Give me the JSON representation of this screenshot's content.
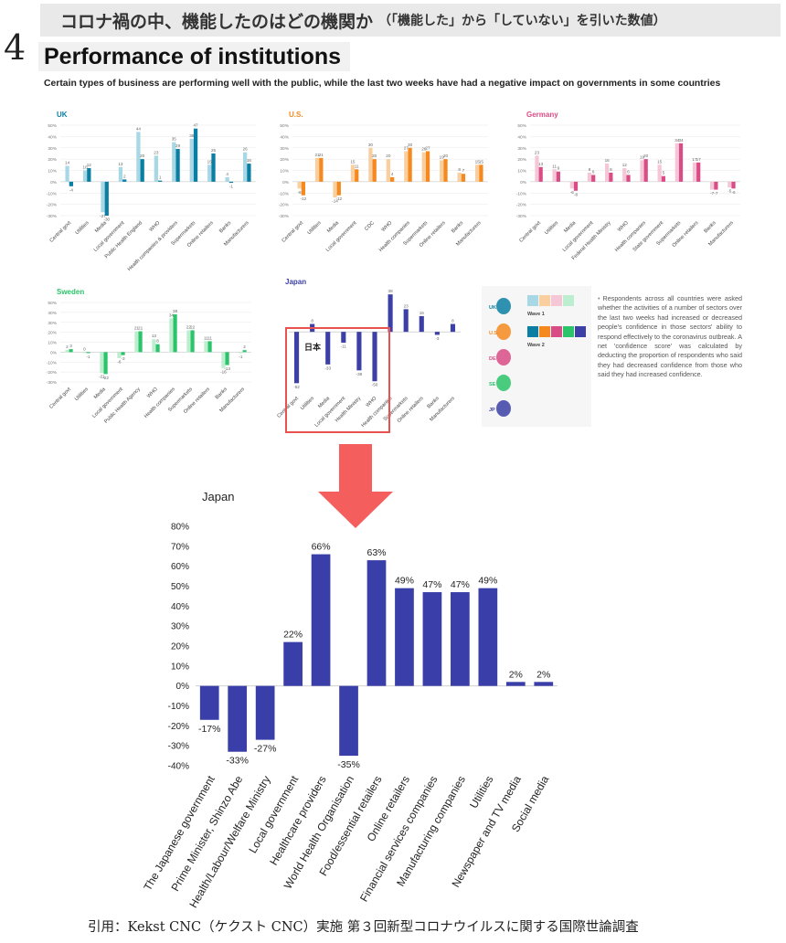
{
  "header": {
    "banner_main": "コロナ禍の中、機能したのはどの機関か",
    "banner_sub": "（「機能した」から「していない」を引いた数値）",
    "section_number": "4",
    "title": "Performance of institutions",
    "subtitle": "Certain types of business are performing well with the public, while the last two weeks have had a negative impact on governments in some countries"
  },
  "small_axis_ticks": [
    "50%",
    "40%",
    "30%",
    "20%",
    "10%",
    "0%",
    "-10%",
    "-20%",
    "-30%"
  ],
  "legend": {
    "countries": [
      "UK",
      "U.S.",
      "DE",
      "SE",
      "JP"
    ],
    "wave1_label": "Wave 1",
    "wave2_label": "Wave 2",
    "wave1_colors": [
      "#a8d8e6",
      "#f9cf9f",
      "#f5c6d6",
      "#bdeed0"
    ],
    "wave2_colors": [
      "#0b7fa3",
      "#f5891f",
      "#d94c86",
      "#2cc46a",
      "#3b3fa6"
    ]
  },
  "note": "Respondents across all countries were asked whether the activities of a number of sectors over the last two weeks had increased or decreased people's confidence in those sectors' ability to respond effectively to the coronavirus outbreak. A net 'confidence score' was calculated by deducting the proportion of respondents who said they had decreased confidence from those who said they had increased confidence.",
  "nihon_label": "日本",
  "citation": "引用：Kekst CNC（ケクスト CNC）実施 第３回新型コロナウイルスに関する国際世論調査",
  "chart_data": [
    {
      "type": "bar",
      "title": "UK",
      "color_w1": "#a8d8e6",
      "color_w2": "#0b7fa3",
      "categories": [
        "Central govt",
        "Utilities",
        "Media",
        "Local government",
        "Public Health England",
        "WHO",
        "Health companies & providers",
        "Supermarkets",
        "Online retailers",
        "Banks",
        "Manufacturers"
      ],
      "series": [
        {
          "name": "Wave 1",
          "values": [
            14,
            10,
            -27,
            13,
            44,
            23,
            35,
            38,
            15,
            4,
            26
          ]
        },
        {
          "name": "Wave 2",
          "values": [
            -4,
            12,
            -30,
            2,
            20,
            1,
            29,
            47,
            25,
            -1,
            16
          ]
        }
      ],
      "ylim": [
        -30,
        50
      ]
    },
    {
      "type": "bar",
      "title": "U.S.",
      "color_w1": "#f9cf9f",
      "color_w2": "#f5891f",
      "categories": [
        "Central govt",
        "Utilities",
        "Media",
        "Local government",
        "CDC",
        "WHO",
        "Health companies",
        "Supermarkets",
        "Online retailers",
        "Banks",
        "Manufacturers"
      ],
      "series": [
        {
          "name": "Wave 1",
          "values": [
            -6,
            21,
            -14,
            15,
            30,
            20,
            27,
            26,
            19,
            8,
            15
          ]
        },
        {
          "name": "Wave 2",
          "values": [
            -12,
            21,
            -12,
            11,
            20,
            4,
            30,
            27,
            20,
            7,
            15
          ]
        }
      ],
      "ylim": [
        -30,
        50
      ]
    },
    {
      "type": "bar",
      "title": "Germany",
      "color_w1": "#f5c6d6",
      "color_w2": "#d94c86",
      "categories": [
        "Central govt",
        "Utilities",
        "Media",
        "Local government",
        "Federal Health Ministry",
        "WHO",
        "Health companies",
        "State government",
        "Supermarkets",
        "Online retailers",
        "Banks",
        "Manufacturers"
      ],
      "series": [
        {
          "name": "Wave 1",
          "values": [
            23,
            11,
            -6,
            8,
            16,
            12,
            19,
            15,
            34,
            17,
            -7,
            -5
          ]
        },
        {
          "name": "Wave 2",
          "values": [
            13,
            9,
            -8,
            6,
            8,
            6,
            20,
            5,
            34,
            17,
            -7,
            -6
          ]
        }
      ],
      "ylim": [
        -30,
        50
      ]
    },
    {
      "type": "bar",
      "title": "Sweden",
      "color_w1": "#bdeed0",
      "color_w2": "#2cc46a",
      "categories": [
        "Central govt",
        "Utilities",
        "Media",
        "Local government",
        "Public Health Agency",
        "WHO",
        "Health companies",
        "Supermarkets",
        "Online retailers",
        "Banks",
        "Manufacturers"
      ],
      "series": [
        {
          "name": "Wave 1",
          "values": [
            2,
            0,
            -21,
            -6,
            21,
            13,
            34,
            22,
            11,
            -16,
            -1
          ]
        },
        {
          "name": "Wave 2",
          "values": [
            3,
            -1,
            -22,
            -3,
            21,
            8,
            38,
            22,
            11,
            -13,
            2
          ]
        }
      ],
      "ylim": [
        -30,
        50
      ]
    },
    {
      "type": "bar",
      "title": "Japan",
      "color_w2": "#3b3fa6",
      "categories": [
        "Central govt",
        "Utilities",
        "Media",
        "Local government",
        "Health Ministry",
        "WHO",
        "Health companies",
        "Supermarkets",
        "Online retailers",
        "Banks",
        "Manufacturers"
      ],
      "series": [
        {
          "name": "Wave 2",
          "values": [
            -52,
            8,
            -33,
            -11,
            -39,
            -50,
            38,
            23,
            16,
            -3,
            8
          ]
        }
      ],
      "ylim": [
        -60,
        40
      ]
    },
    {
      "type": "bar",
      "title": "Japan",
      "color": "#3a3ea8",
      "categories": [
        "The Japanese government",
        "Prime Minister, Shinzo Abe",
        "Health/Labour/Welfare Ministry",
        "Local government",
        "Healthcare providers",
        "World Health Organisation",
        "Food/essential retailers",
        "Online retailers",
        "Financial services companies",
        "Manufacturing companies",
        "Utilities",
        "Newspaper and TV media",
        "Social media"
      ],
      "values": [
        -17,
        -33,
        -27,
        22,
        66,
        -35,
        63,
        49,
        47,
        47,
        49,
        2,
        2
      ],
      "value_labels": [
        "-17%",
        "-33%",
        "-27%",
        "22%",
        "66%",
        "-35%",
        "63%",
        "49%",
        "47%",
        "47%",
        "49%",
        "2%",
        "2%"
      ],
      "ticks": [
        "80%",
        "70%",
        "60%",
        "50%",
        "40%",
        "30%",
        "20%",
        "10%",
        "0%",
        "-10%",
        "-20%",
        "-30%",
        "-40%"
      ],
      "ylim": [
        -40,
        80
      ]
    }
  ]
}
